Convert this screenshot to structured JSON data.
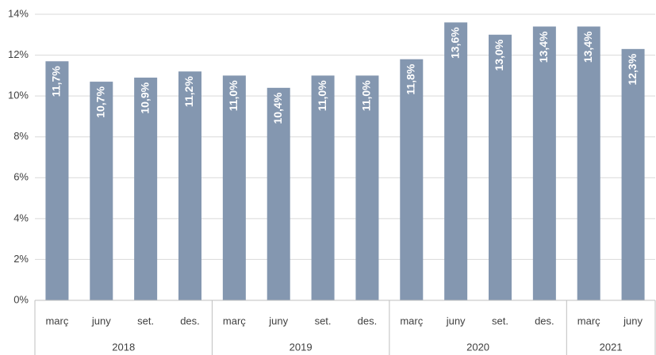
{
  "chart_data": {
    "type": "bar",
    "categories": [
      "març",
      "juny",
      "set.",
      "des.",
      "març",
      "juny",
      "set.",
      "des.",
      "març",
      "juny",
      "set.",
      "des.",
      "març",
      "juny"
    ],
    "groups": [
      {
        "label": "2018",
        "count": 4
      },
      {
        "label": "2019",
        "count": 4
      },
      {
        "label": "2020",
        "count": 4
      },
      {
        "label": "2021",
        "count": 2
      }
    ],
    "values": [
      11.7,
      10.7,
      10.9,
      11.2,
      11.0,
      10.4,
      11.0,
      11.0,
      11.8,
      13.6,
      13.0,
      13.4,
      13.4,
      12.3
    ],
    "value_labels": [
      "11,7%",
      "10,7%",
      "10,9%",
      "11,2%",
      "11,0%",
      "10,4%",
      "11,0%",
      "11,0%",
      "11,8%",
      "13,6%",
      "13,0%",
      "13,4%",
      "13,4%",
      "12,3%"
    ],
    "color": "#8497b0",
    "ylim": [
      0,
      14
    ],
    "yticks": [
      {
        "value": 0,
        "label": "0%"
      },
      {
        "value": 2,
        "label": "2%"
      },
      {
        "value": 4,
        "label": "4%"
      },
      {
        "value": 6,
        "label": "6%"
      },
      {
        "value": 8,
        "label": "8%"
      },
      {
        "value": 10,
        "label": "10%"
      },
      {
        "value": 12,
        "label": "12%"
      },
      {
        "value": 14,
        "label": "14%"
      }
    ],
    "grid": true
  }
}
